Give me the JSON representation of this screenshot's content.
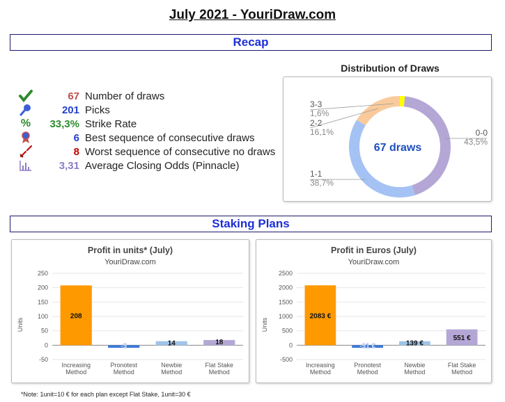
{
  "page_title": "July 2021 - YouriDraw.com",
  "sections": {
    "recap": "Recap",
    "staking": "Staking Plans"
  },
  "recap": [
    {
      "icon": "checkmark-icon",
      "value": "67",
      "label": "Number of draws",
      "color": "#c0504d"
    },
    {
      "icon": "pin-icon",
      "value": "201",
      "label": "Picks",
      "color": "#1f3fcf"
    },
    {
      "icon": "percent-icon",
      "value": "33,3%",
      "label": "Strike Rate",
      "color": "#2e8b2e"
    },
    {
      "icon": "medal-icon",
      "value": "6",
      "label": "Best sequence of consecutive draws",
      "color": "#1f3fcf"
    },
    {
      "icon": "broken-sword-icon",
      "value": "8",
      "label": "Worst sequence of consecutive no draws",
      "color": "#c00000"
    },
    {
      "icon": "bar-chart-icon",
      "value": "3,31",
      "label": "Average Closing Odds (Pinnacle)",
      "color": "#8e7cc3"
    }
  ],
  "distribution": {
    "title": "Distribution of Draws",
    "center_label": "67 draws",
    "slices": [
      {
        "name": "0-0",
        "pct": "43,5%",
        "value": 43.5,
        "color": "#b4a7d6"
      },
      {
        "name": "1-1",
        "pct": "38,7%",
        "value": 38.7,
        "color": "#a4c2f4"
      },
      {
        "name": "2-2",
        "pct": "16,1%",
        "value": 16.1,
        "color": "#f9cb9c"
      },
      {
        "name": "3-3",
        "pct": "1,6%",
        "value": 1.6,
        "color": "#ffff00"
      }
    ]
  },
  "chart_data": [
    {
      "type": "bar",
      "title": "Profit in units* (July)",
      "subtitle": "YouriDraw.com",
      "ylabel": "Units",
      "ylim": [
        -50,
        250
      ],
      "yticks": [
        "250",
        "200",
        "150",
        "100",
        "50",
        "0",
        "-50"
      ],
      "categories": [
        [
          "Increasing",
          "Method"
        ],
        [
          "Pronotest",
          "Method"
        ],
        [
          "Newbie",
          "Method"
        ],
        [
          "Flat Stake",
          "Method"
        ]
      ],
      "values": [
        208,
        -9,
        14,
        18
      ],
      "value_labels": [
        "208",
        "-9",
        "14",
        "18"
      ],
      "colors": [
        "#ff9900",
        "#3c78d8",
        "#9fc5e8",
        "#b4a7d6"
      ]
    },
    {
      "type": "bar",
      "title": "Profit in Euros (July)",
      "subtitle": "YouriDraw.com",
      "ylabel": "Units",
      "ylim": [
        -500,
        2500
      ],
      "yticks": [
        "2500",
        "2000",
        "1500",
        "1000",
        "500",
        "0",
        "-500"
      ],
      "categories": [
        [
          "Increasing",
          "Method"
        ],
        [
          "Pronotest",
          "Method"
        ],
        [
          "Newbie",
          "Method"
        ],
        [
          "Flat Stake",
          "Method"
        ]
      ],
      "values": [
        2083,
        -91,
        139,
        551
      ],
      "value_labels": [
        "2083 €",
        "-91 €",
        "139 €",
        "551 €"
      ],
      "colors": [
        "#ff9900",
        "#3c78d8",
        "#9fc5e8",
        "#b4a7d6"
      ]
    }
  ],
  "note": "*Note:  1unit=10 € for each plan except Flat Stake, 1unit=30 €"
}
